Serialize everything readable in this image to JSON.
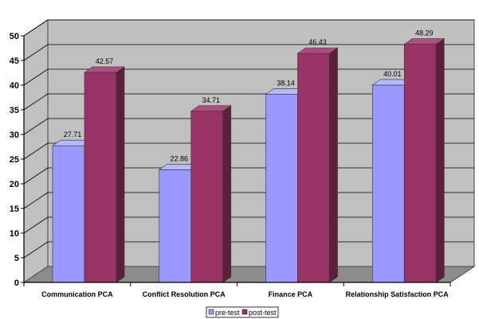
{
  "chart_data": {
    "type": "bar",
    "style": "3d-clustered-column",
    "categories": [
      "Communication PCA",
      "Conflict Resolution PCA",
      "Finance PCA",
      "Relationship Satisfaction PCA"
    ],
    "series": [
      {
        "name": "pre-test",
        "values": [
          27.71,
          22.86,
          38.14,
          40.01
        ],
        "value_labels": [
          "27.71",
          "22.86",
          "38.14",
          "40.01"
        ]
      },
      {
        "name": "post-test",
        "values": [
          42.57,
          34.71,
          46.43,
          48.29
        ],
        "value_labels": [
          "42.57",
          "34.71",
          "46.43",
          "48.29"
        ]
      }
    ],
    "yticks": [
      "0",
      "5",
      "10",
      "15",
      "20",
      "25",
      "30",
      "35",
      "40",
      "45",
      "50"
    ],
    "ylim": [
      0,
      50
    ],
    "grid": true,
    "legend_position": "bottom",
    "colors": {
      "pre-test": "#9999ff",
      "pre-test-top": "#b8b8ff",
      "pre-test-side": "#5c5cb0",
      "post-test": "#993366",
      "post-test-top": "#b04d80",
      "post-test-side": "#5c1f3d",
      "wall": "#c0c0c0",
      "floor": "#8c8c8c"
    }
  }
}
